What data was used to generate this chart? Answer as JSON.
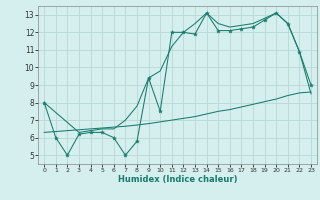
{
  "xlabel": "Humidex (Indice chaleur)",
  "bg_color": "#d4efed",
  "line_color": "#1a7a6e",
  "grid_color": "#b8d8d5",
  "xlim": [
    -0.5,
    23.5
  ],
  "ylim": [
    4.5,
    13.5
  ],
  "xticks": [
    0,
    1,
    2,
    3,
    4,
    5,
    6,
    7,
    8,
    9,
    10,
    11,
    12,
    13,
    14,
    15,
    16,
    17,
    18,
    19,
    20,
    21,
    22,
    23
  ],
  "yticks": [
    5,
    6,
    7,
    8,
    9,
    10,
    11,
    12,
    13
  ],
  "jagged_x": [
    0,
    1,
    2,
    3,
    4,
    5,
    6,
    7,
    8,
    9,
    10,
    11,
    12,
    13,
    14,
    15,
    16,
    17,
    18,
    19,
    20,
    21,
    22,
    23
  ],
  "jagged_y": [
    8.0,
    6.0,
    5.0,
    6.2,
    6.3,
    6.3,
    6.0,
    5.0,
    5.8,
    9.4,
    7.5,
    12.0,
    12.0,
    11.9,
    13.1,
    12.1,
    12.1,
    12.2,
    12.3,
    12.7,
    13.1,
    12.5,
    10.9,
    9.0
  ],
  "smooth_x": [
    0,
    3,
    4,
    5,
    6,
    7,
    8,
    9,
    10,
    11,
    12,
    13,
    14,
    15,
    16,
    17,
    18,
    19,
    20,
    21,
    22,
    23
  ],
  "smooth_y": [
    8.0,
    6.3,
    6.4,
    6.5,
    6.5,
    7.0,
    7.8,
    9.4,
    9.8,
    11.2,
    12.0,
    12.5,
    13.1,
    12.5,
    12.3,
    12.4,
    12.5,
    12.8,
    13.1,
    12.5,
    10.9,
    8.5
  ],
  "linear_x": [
    0,
    1,
    2,
    3,
    4,
    5,
    6,
    7,
    8,
    9,
    10,
    11,
    12,
    13,
    14,
    15,
    16,
    17,
    18,
    19,
    20,
    21,
    22,
    23
  ],
  "linear_y": [
    6.3,
    6.35,
    6.4,
    6.45,
    6.5,
    6.55,
    6.6,
    6.65,
    6.72,
    6.8,
    6.9,
    7.0,
    7.1,
    7.2,
    7.35,
    7.5,
    7.6,
    7.75,
    7.9,
    8.05,
    8.2,
    8.4,
    8.55,
    8.6
  ]
}
